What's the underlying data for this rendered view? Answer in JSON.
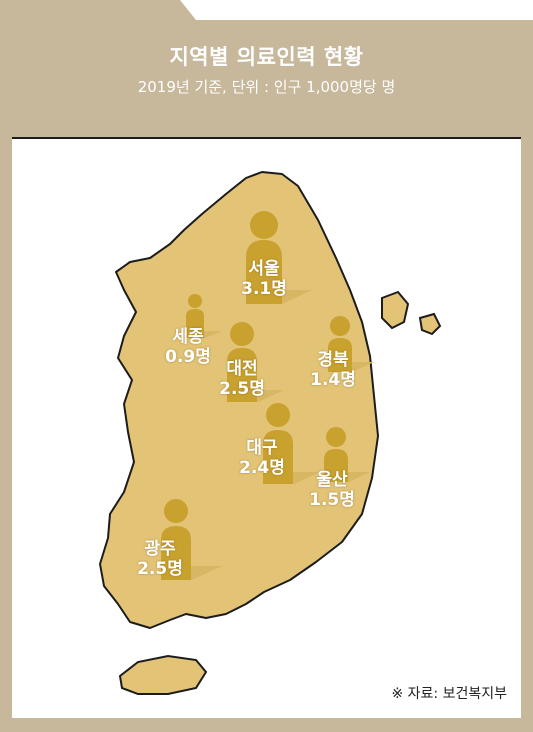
{
  "title": "지역별 의료인력 현황",
  "subtitle": "2019년 기준, 단위 : 인구 1,000명당 명",
  "source": "※ 자료: 보건복지부",
  "unit": "명",
  "regions": [
    {
      "name": "서울",
      "value": "3.1명",
      "icon": "person-icon"
    },
    {
      "name": "세종",
      "value": "0.9명",
      "icon": "person-icon"
    },
    {
      "name": "대전",
      "value": "2.5명",
      "icon": "person-icon"
    },
    {
      "name": "경북",
      "value": "1.4명",
      "icon": "person-icon"
    },
    {
      "name": "대구",
      "value": "2.4명",
      "icon": "person-icon"
    },
    {
      "name": "울산",
      "value": "1.5명",
      "icon": "person-icon"
    },
    {
      "name": "광주",
      "value": "2.5명",
      "icon": "person-icon"
    }
  ],
  "colors": {
    "frame": "#c7b79b",
    "map_fill": "#e3c376",
    "map_stroke": "#1c1c1c",
    "person": "#c9a12e",
    "shadow": "#d7b664"
  }
}
